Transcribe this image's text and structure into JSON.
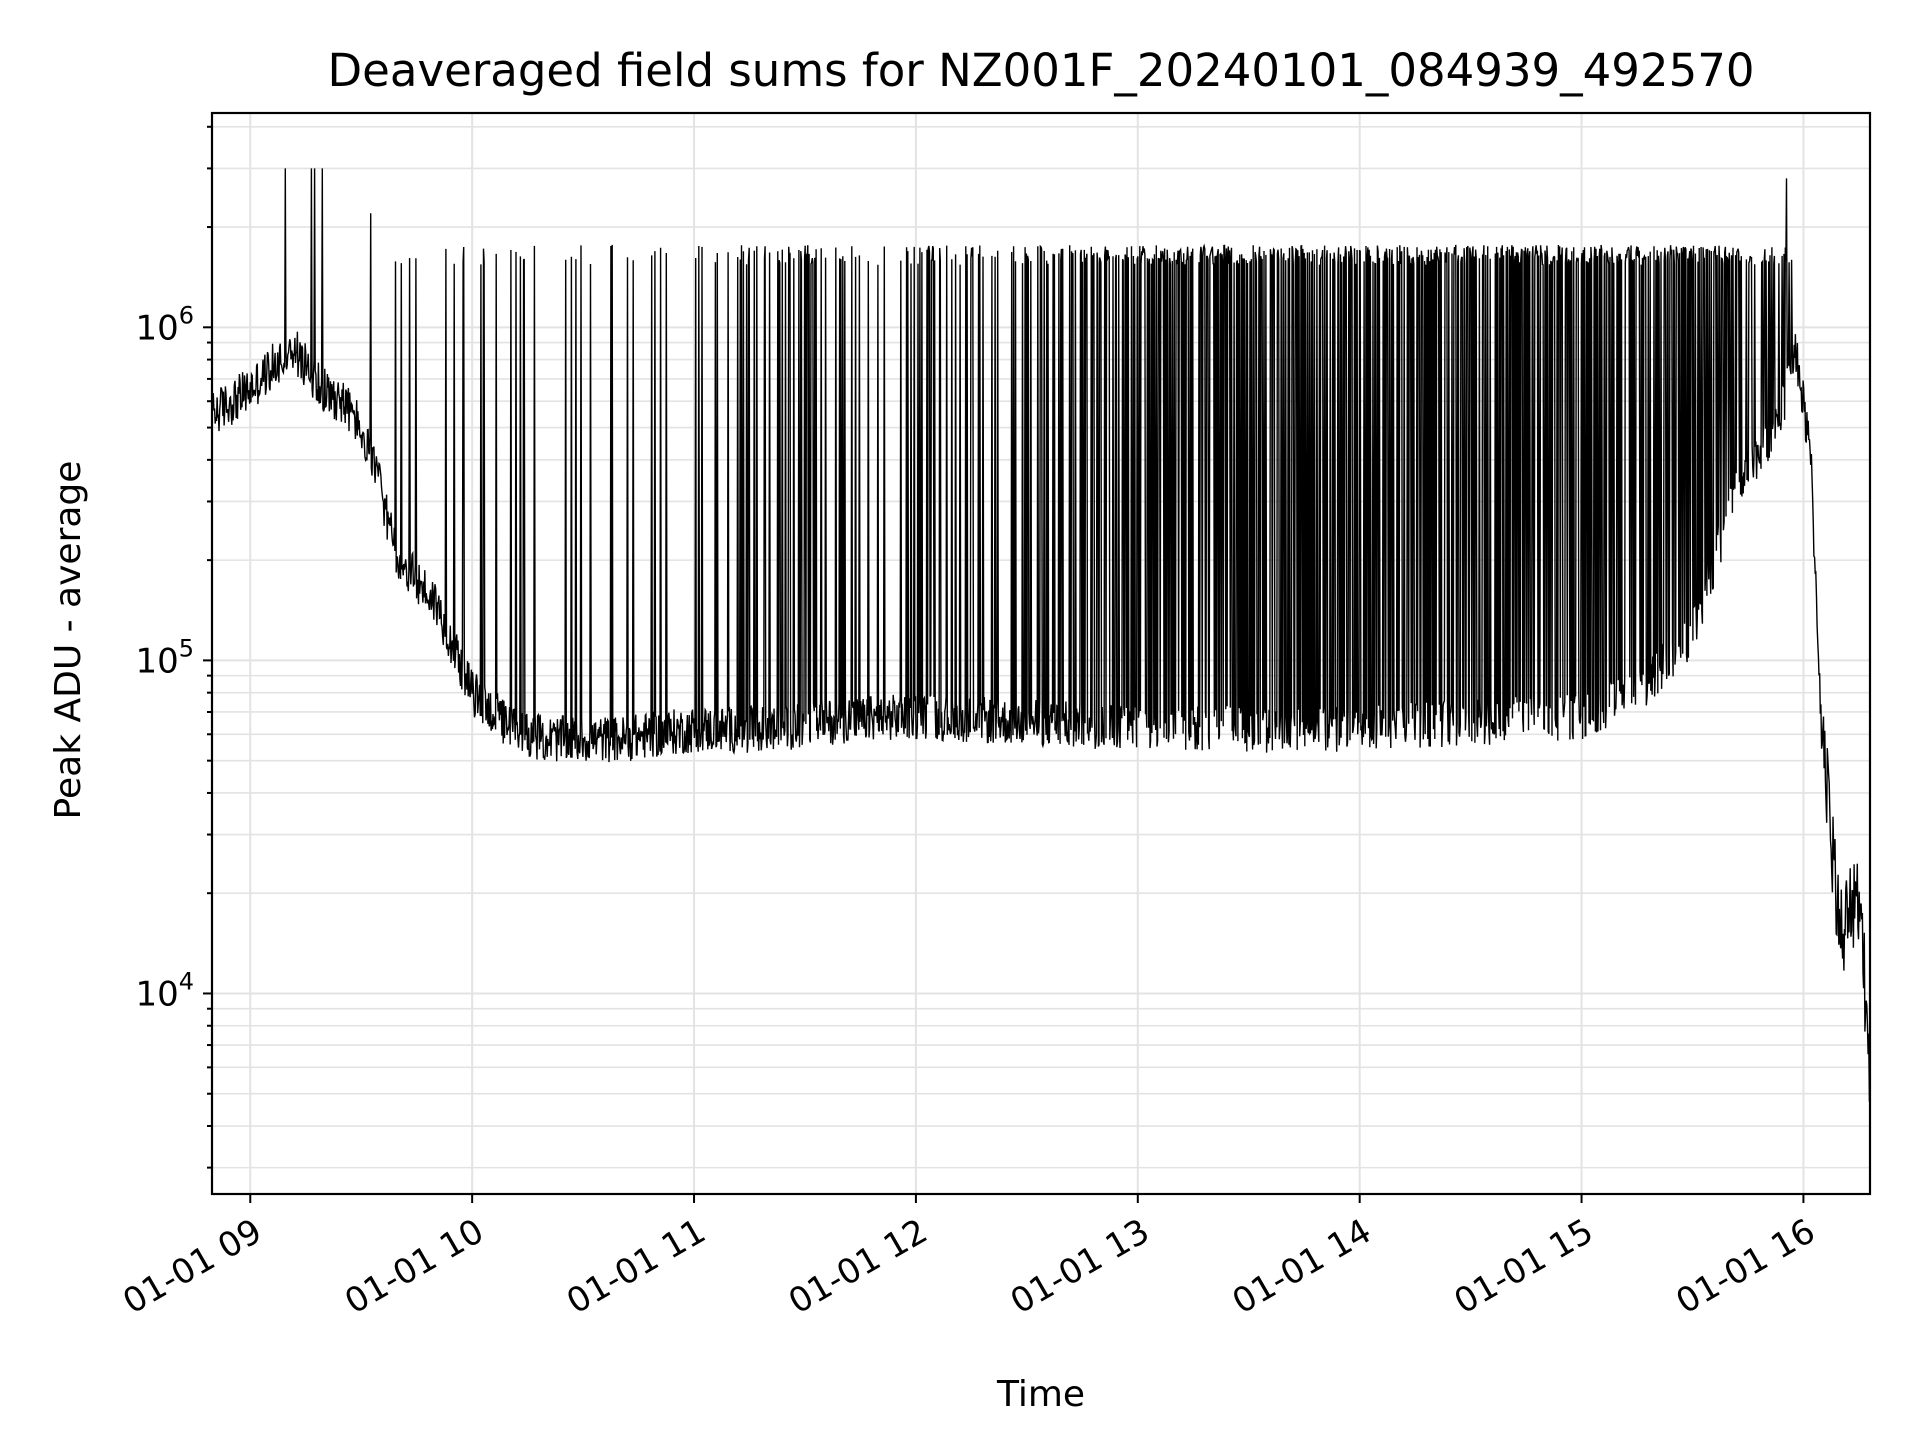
{
  "chart_data": {
    "type": "line",
    "title": "Deaveraged field sums for NZ001F_20240101_084939_492570",
    "xlabel": "Time",
    "ylabel": "Peak ADU - average",
    "xscale": "time",
    "yscale": "log",
    "grid": true,
    "grid_minor": true,
    "xlim": [
      "2024-01-01T08:49:39",
      "2024-01-01T16:18:00"
    ],
    "ylim": [
      2500,
      4400000
    ],
    "x_ticks": [
      "2024-01-01T09:00",
      "2024-01-01T10:00",
      "2024-01-01T11:00",
      "2024-01-01T12:00",
      "2024-01-01T13:00",
      "2024-01-01T14:00",
      "2024-01-01T15:00",
      "2024-01-01T16:00"
    ],
    "x_tick_labels": [
      "01-01 09",
      "01-01 10",
      "01-01 11",
      "01-01 12",
      "01-01 13",
      "01-01 14",
      "01-01 15",
      "01-01 16"
    ],
    "y_ticks": [
      10000,
      100000,
      1000000
    ],
    "y_tick_labels": [
      {
        "base": "10",
        "exp": "4"
      },
      {
        "base": "10",
        "exp": "5"
      },
      {
        "base": "10",
        "exp": "6"
      }
    ],
    "line_color": "#000000",
    "series": [
      {
        "x": [
          "2024-01-01T08:50",
          "2024-01-01T09:00",
          "2024-01-01T09:08",
          "2024-01-01T09:12",
          "2024-01-01T09:20",
          "2024-01-01T09:25",
          "2024-01-01T09:30",
          "2024-01-01T09:35",
          "2024-01-01T09:40",
          "2024-01-01T09:50",
          "2024-01-01T10:00",
          "2024-01-01T10:10",
          "2024-01-01T10:20",
          "2024-01-01T10:40",
          "2024-01-01T11:00",
          "2024-01-01T11:20",
          "2024-01-01T11:40",
          "2024-01-01T12:00",
          "2024-01-01T12:30",
          "2024-01-01T13:00",
          "2024-01-01T13:30",
          "2024-01-01T14:00",
          "2024-01-01T14:30",
          "2024-01-01T15:00",
          "2024-01-01T15:15",
          "2024-01-01T15:30",
          "2024-01-01T15:40",
          "2024-01-01T15:45",
          "2024-01-01T15:50",
          "2024-01-01T15:55",
          "2024-01-01T15:58",
          "2024-01-01T16:02",
          "2024-01-01T16:05",
          "2024-01-01T16:10",
          "2024-01-01T16:15",
          "2024-01-01T16:18"
        ],
        "y": [
          550000,
          650000,
          800000,
          850000,
          650000,
          600000,
          500000,
          330000,
          200000,
          150000,
          80000,
          63000,
          58000,
          58000,
          62000,
          62000,
          66000,
          68000,
          65000,
          63000,
          62000,
          62000,
          65000,
          68000,
          80000,
          120000,
          280000,
          380000,
          450000,
          620000,
          850000,
          400000,
          60000,
          15000,
          20000,
          6000
        ],
        "spike_ceiling": 1650000
      }
    ]
  }
}
